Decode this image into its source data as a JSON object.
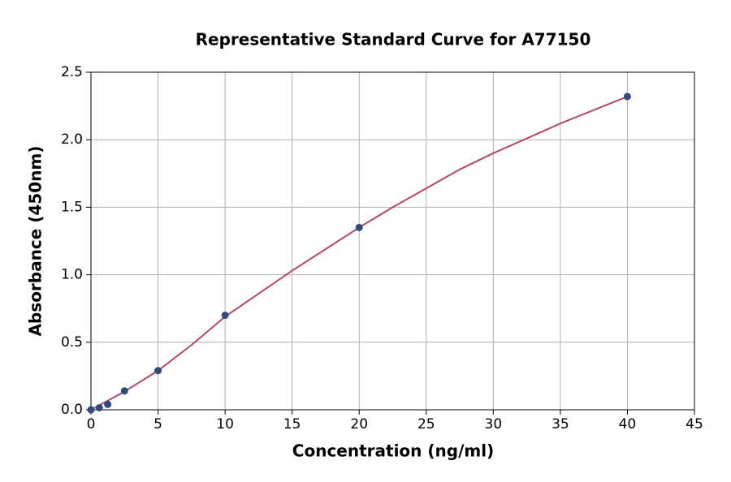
{
  "chart_data": {
    "type": "scatter",
    "title": "Representative Standard Curve for A77150",
    "x_label": "Concentration (ng/ml)",
    "y_label": "Absorbance (450nm)",
    "xlim": [
      0,
      45
    ],
    "ylim": [
      0,
      2.5
    ],
    "xticks": [
      0,
      5,
      10,
      15,
      20,
      25,
      30,
      35,
      40,
      45
    ],
    "yticks": [
      {
        "value": 0,
        "label": "0.0"
      },
      0.5,
      {
        "value": 1,
        "label": "1.0"
      },
      1.5,
      {
        "value": 2,
        "label": "2.0"
      },
      2.5
    ],
    "grid": true,
    "series": [
      {
        "type": "line",
        "color": "#b5476b",
        "x": [
          0,
          2.5,
          5,
          7.5,
          10,
          12.5,
          15,
          17.5,
          20,
          22.5,
          25,
          27.5,
          30,
          32.5,
          35,
          37.5,
          40
        ],
        "values": [
          0,
          0.135,
          0.29,
          0.48,
          0.69,
          0.86,
          1.03,
          1.19,
          1.35,
          1.5,
          1.64,
          1.78,
          1.9,
          2.01,
          2.12,
          2.22,
          2.32
        ]
      },
      {
        "type": "scatter",
        "color": "#2f4b7c",
        "x": [
          0,
          0.625,
          1.25,
          2.5,
          5,
          10,
          20,
          40
        ],
        "values": [
          0,
          0.015,
          0.04,
          0.14,
          0.29,
          0.7,
          1.35,
          2.32
        ]
      }
    ]
  }
}
